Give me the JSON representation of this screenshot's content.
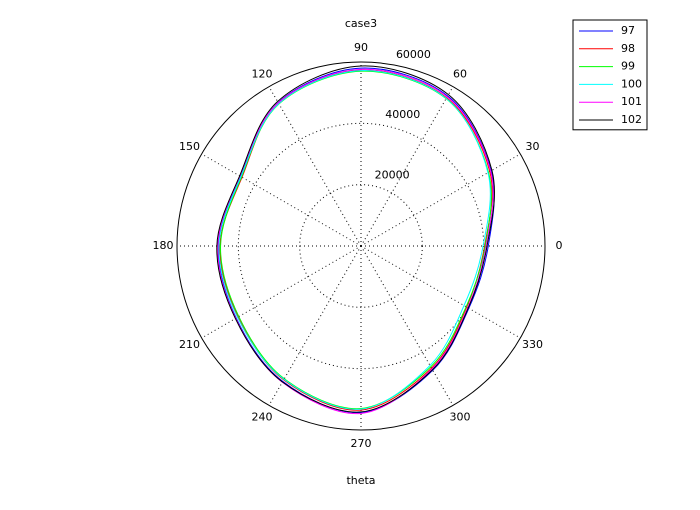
{
  "chart_data": {
    "type": "polar",
    "title": "case3",
    "xlabel": "theta",
    "theta": [
      0,
      30,
      60,
      90,
      120,
      150,
      180,
      210,
      240,
      270,
      300,
      330
    ],
    "rlim": [
      0,
      60000
    ],
    "rticks": [
      20000,
      40000,
      60000
    ],
    "thetaticks": [
      0,
      30,
      60,
      90,
      120,
      150,
      180,
      210,
      240,
      270,
      300,
      330
    ],
    "grid": true,
    "legend": "upper right",
    "series": [
      {
        "name": "97",
        "color": "#0000ff",
        "values": [
          41500,
          49000,
          56500,
          58000,
          54000,
          45300,
          46500,
          47000,
          51000,
          54300,
          46800,
          40600
        ]
      },
      {
        "name": "98",
        "color": "#ff0000",
        "values": [
          40300,
          48500,
          55800,
          57300,
          53700,
          44800,
          46000,
          46300,
          50400,
          53500,
          46000,
          39800
        ]
      },
      {
        "name": "99",
        "color": "#00ff00",
        "values": [
          40500,
          48000,
          55500,
          57000,
          53500,
          45000,
          45800,
          46000,
          50000,
          53000,
          45500,
          39600
        ]
      },
      {
        "name": "100",
        "color": "#00ffff",
        "values": [
          39800,
          47800,
          55600,
          57200,
          53600,
          45200,
          46300,
          46500,
          50200,
          53200,
          45000,
          38800
        ]
      },
      {
        "name": "101",
        "color": "#ff00ff",
        "values": [
          40800,
          48800,
          56200,
          57600,
          53900,
          45600,
          46700,
          47200,
          51300,
          54600,
          46300,
          40200
        ]
      },
      {
        "name": "102",
        "color": "#000000",
        "values": [
          41100,
          49300,
          57000,
          58700,
          54400,
          45700,
          47000,
          47300,
          51200,
          54100,
          46600,
          40400
        ]
      }
    ]
  }
}
